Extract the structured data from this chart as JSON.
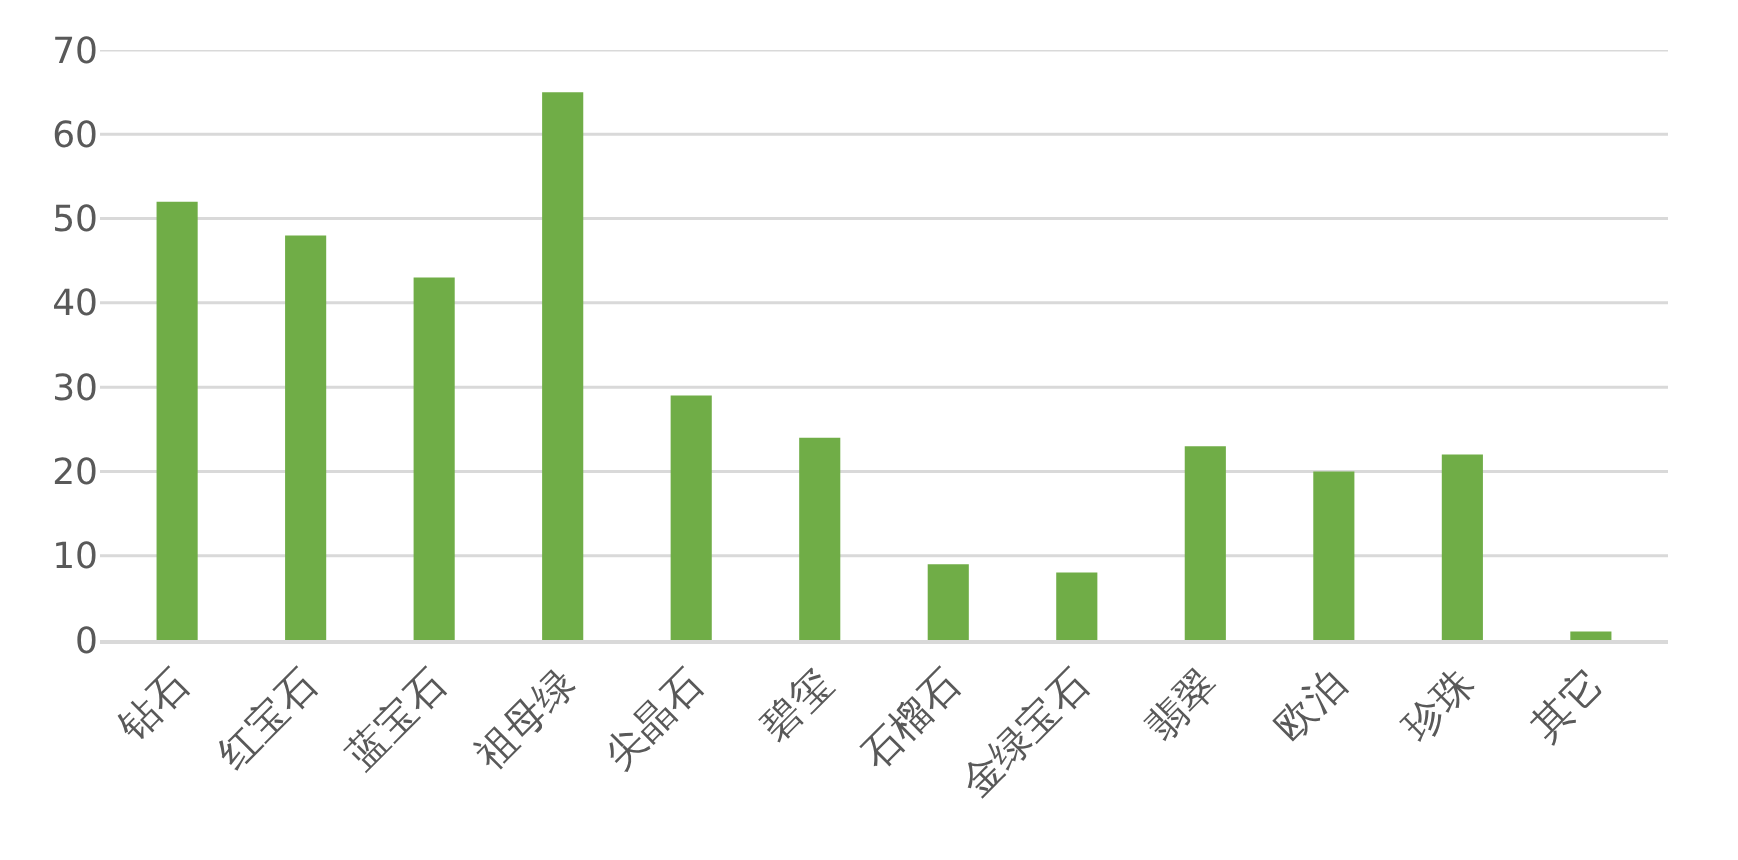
{
  "chart_data": {
    "type": "bar",
    "categories": [
      "钻石",
      "红宝石",
      "蓝宝石",
      "祖母绿",
      "尖晶石",
      "碧玺",
      "石榴石",
      "金绿宝石",
      "翡翠",
      "欧泊",
      "珍珠",
      "其它"
    ],
    "values": [
      52,
      48,
      43,
      65,
      29,
      24,
      9,
      8,
      23,
      20,
      22,
      1
    ],
    "color": "#70ad47",
    "ylim": [
      0,
      70
    ],
    "yticks": [
      0,
      10,
      20,
      30,
      40,
      50,
      60,
      70
    ],
    "grid": "y"
  }
}
